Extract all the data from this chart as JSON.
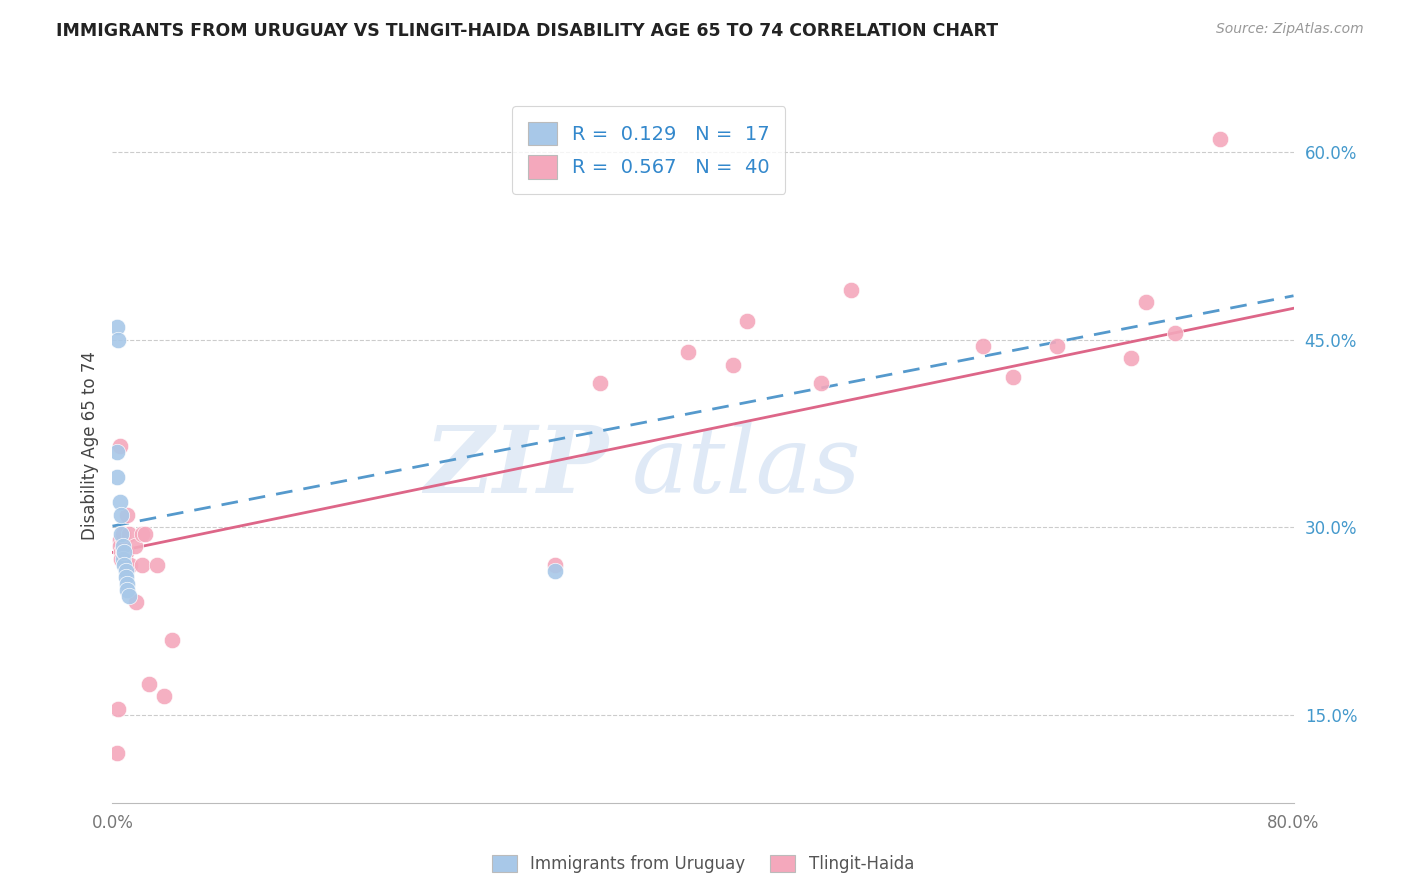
{
  "title": "IMMIGRANTS FROM URUGUAY VS TLINGIT-HAIDA DISABILITY AGE 65 TO 74 CORRELATION CHART",
  "source": "Source: ZipAtlas.com",
  "ylabel": "Disability Age 65 to 74",
  "watermark_zip": "ZIP",
  "watermark_atlas": "atlas",
  "xlim": [
    0.0,
    0.8
  ],
  "ylim": [
    0.08,
    0.65
  ],
  "yticks_right": [
    0.15,
    0.3,
    0.45,
    0.6
  ],
  "ytick_labels_right": [
    "15.0%",
    "30.0%",
    "45.0%",
    "60.0%"
  ],
  "r1": 0.129,
  "n1": 17,
  "r2": 0.567,
  "n2": 40,
  "color_blue": "#a8c8e8",
  "color_pink": "#f4a8bc",
  "color_line_blue": "#5599cc",
  "color_line_pink": "#dd6688",
  "blue_scatter": [
    [
      0.003,
      0.34
    ],
    [
      0.003,
      0.36
    ],
    [
      0.003,
      0.46
    ],
    [
      0.004,
      0.45
    ],
    [
      0.005,
      0.32
    ],
    [
      0.006,
      0.31
    ],
    [
      0.006,
      0.295
    ],
    [
      0.007,
      0.285
    ],
    [
      0.007,
      0.275
    ],
    [
      0.008,
      0.28
    ],
    [
      0.008,
      0.27
    ],
    [
      0.009,
      0.265
    ],
    [
      0.009,
      0.26
    ],
    [
      0.01,
      0.255
    ],
    [
      0.01,
      0.25
    ],
    [
      0.011,
      0.245
    ],
    [
      0.3,
      0.265
    ]
  ],
  "pink_scatter": [
    [
      0.003,
      0.12
    ],
    [
      0.004,
      0.155
    ],
    [
      0.005,
      0.29
    ],
    [
      0.005,
      0.285
    ],
    [
      0.005,
      0.365
    ],
    [
      0.006,
      0.28
    ],
    [
      0.006,
      0.275
    ],
    [
      0.007,
      0.29
    ],
    [
      0.007,
      0.28
    ],
    [
      0.007,
      0.295
    ],
    [
      0.008,
      0.28
    ],
    [
      0.008,
      0.275
    ],
    [
      0.009,
      0.28
    ],
    [
      0.01,
      0.31
    ],
    [
      0.01,
      0.27
    ],
    [
      0.011,
      0.295
    ],
    [
      0.012,
      0.27
    ],
    [
      0.015,
      0.285
    ],
    [
      0.016,
      0.24
    ],
    [
      0.02,
      0.295
    ],
    [
      0.02,
      0.27
    ],
    [
      0.022,
      0.295
    ],
    [
      0.025,
      0.175
    ],
    [
      0.03,
      0.27
    ],
    [
      0.035,
      0.165
    ],
    [
      0.04,
      0.21
    ],
    [
      0.3,
      0.27
    ],
    [
      0.33,
      0.415
    ],
    [
      0.39,
      0.44
    ],
    [
      0.42,
      0.43
    ],
    [
      0.43,
      0.465
    ],
    [
      0.48,
      0.415
    ],
    [
      0.5,
      0.49
    ],
    [
      0.59,
      0.445
    ],
    [
      0.61,
      0.42
    ],
    [
      0.64,
      0.445
    ],
    [
      0.69,
      0.435
    ],
    [
      0.7,
      0.48
    ],
    [
      0.72,
      0.455
    ],
    [
      0.75,
      0.61
    ]
  ],
  "blue_line": [
    [
      0.0,
      0.301
    ],
    [
      0.8,
      0.485
    ]
  ],
  "pink_line": [
    [
      0.0,
      0.28
    ],
    [
      0.8,
      0.475
    ]
  ]
}
